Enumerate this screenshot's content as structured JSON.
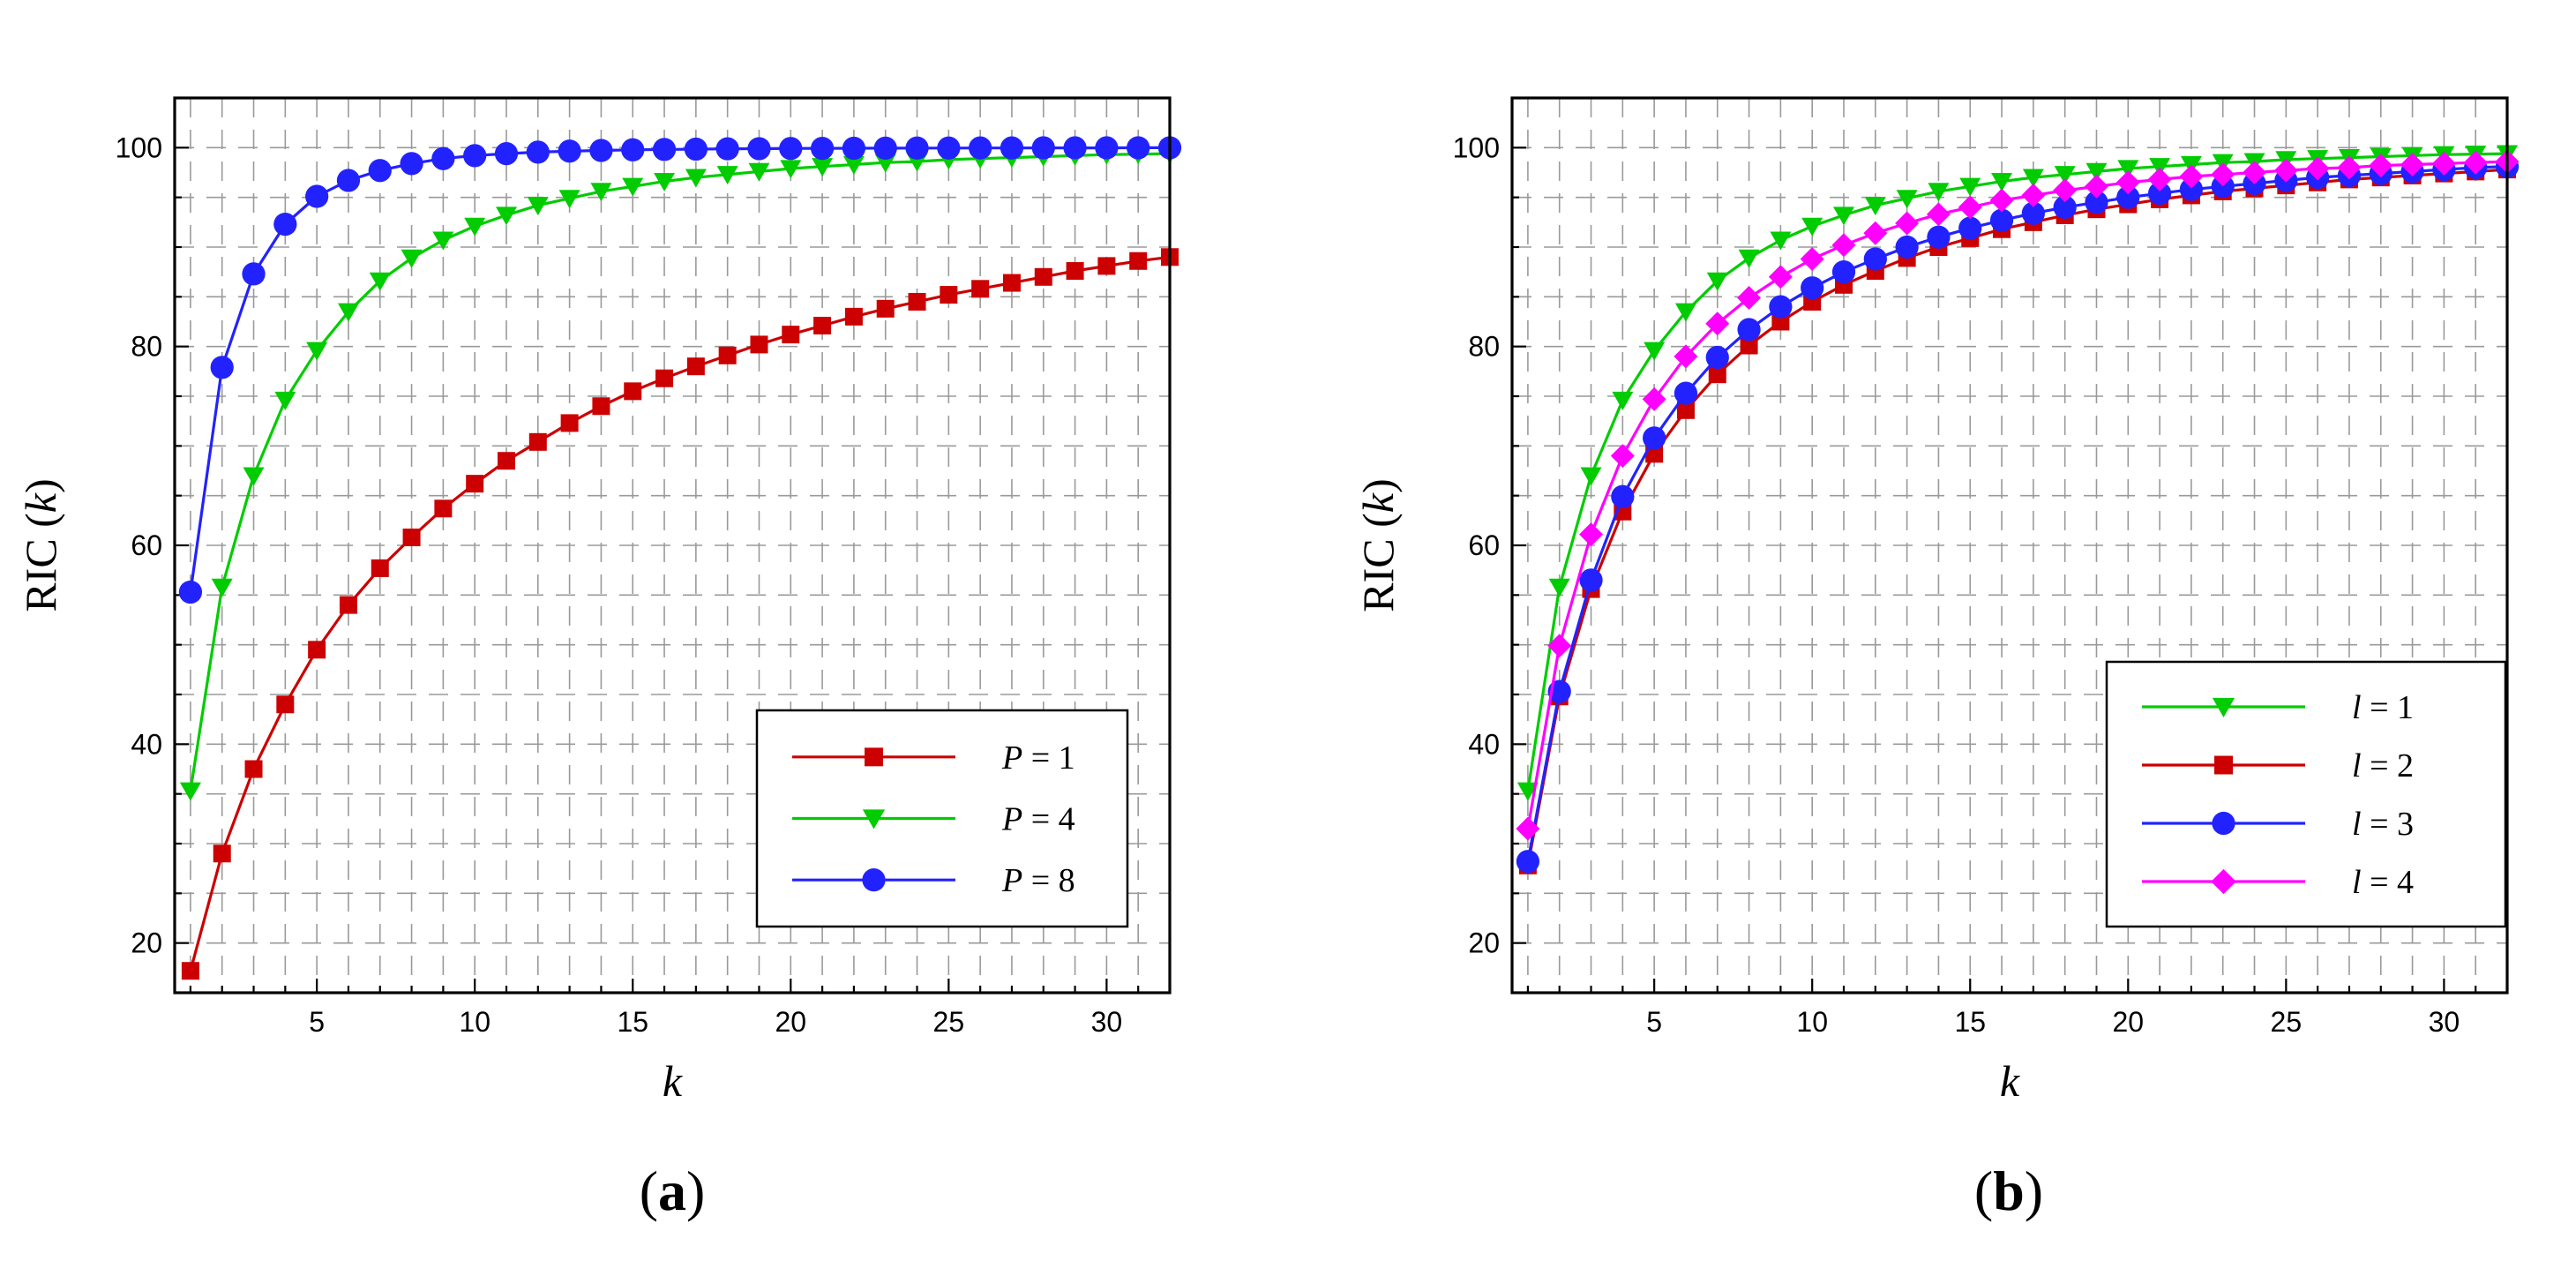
{
  "chart_data": [
    {
      "type": "line",
      "panel_label_open": "(",
      "panel_label_letter": "a",
      "panel_label_close": ")",
      "xlabel": "k",
      "ylabel_text": "RIC (",
      "ylabel_var": "k",
      "ylabel_close": ")",
      "xlim": [
        0.5,
        32
      ],
      "ylim": [
        15,
        105
      ],
      "xticks": [
        5,
        10,
        15,
        20,
        25,
        30
      ],
      "yticks": [
        20,
        40,
        60,
        80,
        100
      ],
      "grid": true,
      "legend_position": "bottom-right",
      "x": [
        1,
        2,
        3,
        4,
        5,
        6,
        7,
        8,
        9,
        10,
        11,
        12,
        13,
        14,
        15,
        16,
        17,
        18,
        19,
        20,
        21,
        22,
        23,
        24,
        25,
        26,
        27,
        28,
        29,
        30,
        31,
        32
      ],
      "series": [
        {
          "var": "P",
          "eq": " = 1",
          "color": "#cc0000",
          "marker": "square",
          "values": [
            17.2,
            29.0,
            37.5,
            44.0,
            49.5,
            54.0,
            57.7,
            60.8,
            63.7,
            66.2,
            68.5,
            70.4,
            72.3,
            74.0,
            75.5,
            76.8,
            78.0,
            79.1,
            80.2,
            81.2,
            82.1,
            83.0,
            83.8,
            84.5,
            85.2,
            85.8,
            86.4,
            87.0,
            87.6,
            88.1,
            88.6,
            89.0
          ]
        },
        {
          "var": "P",
          "eq": " = 4",
          "color": "#00cc00",
          "marker": "triangle-down",
          "values": [
            35.3,
            55.8,
            67.0,
            74.6,
            79.6,
            83.5,
            86.6,
            88.9,
            90.7,
            92.1,
            93.2,
            94.2,
            94.9,
            95.6,
            96.1,
            96.6,
            97.0,
            97.3,
            97.6,
            97.9,
            98.1,
            98.3,
            98.5,
            98.6,
            98.8,
            98.9,
            99.0,
            99.1,
            99.2,
            99.3,
            99.35,
            99.4
          ]
        },
        {
          "var": "P",
          "eq": " = 8",
          "color": "#2222ff",
          "marker": "circle",
          "values": [
            55.3,
            77.9,
            87.3,
            92.3,
            95.1,
            96.7,
            97.7,
            98.4,
            98.9,
            99.2,
            99.4,
            99.55,
            99.65,
            99.72,
            99.78,
            99.82,
            99.85,
            99.88,
            99.9,
            99.92,
            99.93,
            99.94,
            99.95,
            99.96,
            99.96,
            99.97,
            99.97,
            99.98,
            99.98,
            99.98,
            99.99,
            99.99
          ]
        }
      ]
    },
    {
      "type": "line",
      "panel_label_open": "(",
      "panel_label_letter": "b",
      "panel_label_close": ")",
      "xlabel": "k",
      "ylabel_text": "RIC (",
      "ylabel_var": "k",
      "ylabel_close": ")",
      "xlim": [
        0.5,
        32
      ],
      "ylim": [
        15,
        105
      ],
      "xticks": [
        5,
        10,
        15,
        20,
        25,
        30
      ],
      "yticks": [
        20,
        40,
        60,
        80,
        100
      ],
      "grid": true,
      "legend_position": "bottom-right",
      "x": [
        1,
        2,
        3,
        4,
        5,
        6,
        7,
        8,
        9,
        10,
        11,
        12,
        13,
        14,
        15,
        16,
        17,
        18,
        19,
        20,
        21,
        22,
        23,
        24,
        25,
        26,
        27,
        28,
        29,
        30,
        31,
        32
      ],
      "series": [
        {
          "var": "l",
          "eq": " = 1",
          "color": "#00cc00",
          "marker": "triangle-down",
          "values": [
            35.3,
            55.8,
            67.0,
            74.6,
            79.6,
            83.5,
            86.6,
            88.9,
            90.7,
            92.1,
            93.2,
            94.2,
            94.9,
            95.6,
            96.1,
            96.6,
            97.0,
            97.3,
            97.6,
            97.9,
            98.1,
            98.3,
            98.5,
            98.6,
            98.8,
            98.9,
            99.0,
            99.1,
            99.2,
            99.3,
            99.35,
            99.4
          ]
        },
        {
          "var": "l",
          "eq": " = 2",
          "color": "#cc0000",
          "marker": "square",
          "values": [
            27.8,
            44.8,
            55.6,
            63.4,
            69.2,
            73.6,
            77.2,
            80.1,
            82.5,
            84.5,
            86.2,
            87.6,
            88.9,
            90.0,
            90.9,
            91.8,
            92.5,
            93.2,
            93.8,
            94.3,
            94.8,
            95.2,
            95.6,
            95.9,
            96.2,
            96.5,
            96.8,
            97.0,
            97.2,
            97.4,
            97.6,
            97.8
          ]
        },
        {
          "var": "l",
          "eq": " = 3",
          "color": "#2222ff",
          "marker": "circle",
          "values": [
            28.2,
            45.3,
            56.5,
            64.9,
            70.8,
            75.3,
            78.9,
            81.7,
            84.0,
            85.9,
            87.5,
            88.8,
            90.0,
            91.0,
            91.9,
            92.7,
            93.4,
            94.0,
            94.5,
            95.0,
            95.4,
            95.8,
            96.1,
            96.4,
            96.7,
            97.0,
            97.2,
            97.4,
            97.6,
            97.8,
            98.0,
            98.1
          ]
        },
        {
          "var": "l",
          "eq": " = 4",
          "color": "#ff00ff",
          "marker": "diamond",
          "values": [
            31.5,
            49.9,
            61.1,
            69.0,
            74.7,
            79.0,
            82.3,
            84.9,
            87.0,
            88.8,
            90.2,
            91.4,
            92.4,
            93.3,
            94.0,
            94.7,
            95.2,
            95.7,
            96.1,
            96.5,
            96.8,
            97.1,
            97.3,
            97.5,
            97.7,
            97.9,
            98.0,
            98.2,
            98.3,
            98.4,
            98.5,
            98.6
          ]
        }
      ]
    }
  ]
}
